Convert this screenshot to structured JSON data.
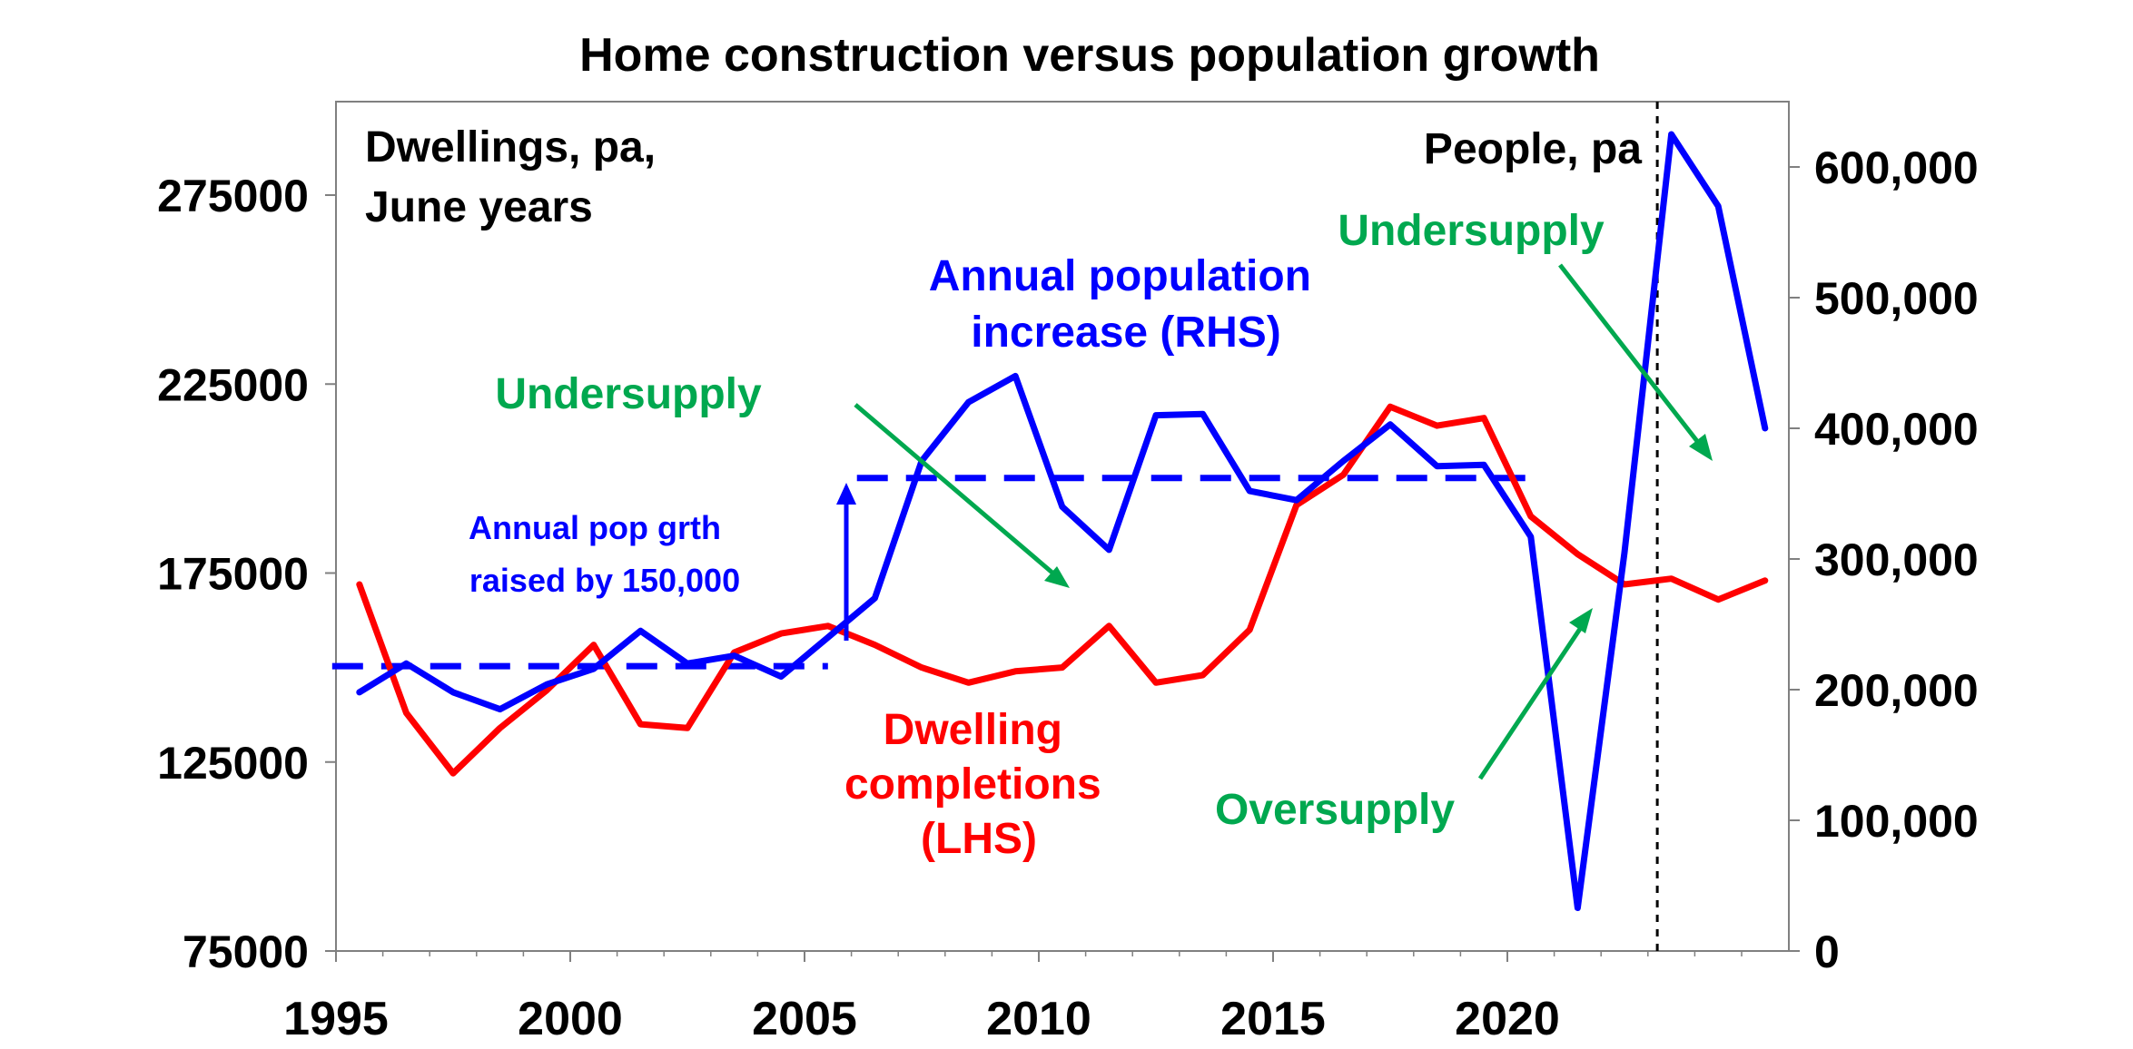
{
  "chart_data": {
    "type": "line",
    "title": "Home construction versus population growth",
    "left_axis_label": [
      "Dwellings, pa,",
      "June years"
    ],
    "right_axis_label": "People, pa",
    "xlim": [
      1995,
      2025
    ],
    "x_ticks": [
      1995,
      2000,
      2005,
      2010,
      2015,
      2020
    ],
    "ylim_left": [
      75000,
      300000
    ],
    "y_ticks_left": [
      "75000",
      "125000",
      "175000",
      "225000",
      "275000"
    ],
    "ylim_right": [
      0,
      650000
    ],
    "y_ticks_right": [
      "0",
      "100,000",
      "200,000",
      "300,000",
      "400,000",
      "500,000",
      "600,000"
    ],
    "series": [
      {
        "name": "Dwelling completions (LHS)",
        "axis": "left",
        "color": "#ff0000",
        "x": [
          1995.5,
          1996.5,
          1997.5,
          1998.5,
          1999.5,
          2000.5,
          2001.5,
          2002.5,
          2003.5,
          2004.5,
          2005.5,
          2006.5,
          2007.5,
          2008.5,
          2009.5,
          2010.5,
          2011.5,
          2012.5,
          2013.5,
          2014.5,
          2015.5,
          2016.5,
          2017.5,
          2018.5,
          2019.5,
          2020.5,
          2021.5,
          2022.5,
          2023.5,
          2024.5,
          2025.5
        ],
        "values": [
          172000,
          138000,
          122000,
          134000,
          144000,
          156000,
          135000,
          134000,
          154000,
          159000,
          161000,
          156000,
          150000,
          146000,
          149000,
          150000,
          161000,
          146000,
          148000,
          160000,
          193000,
          201000,
          219000,
          214000,
          216000,
          190000,
          180000,
          172000,
          173500,
          168000,
          173000
        ]
      },
      {
        "name": "Annual population increase (RHS)",
        "axis": "right",
        "color": "#0000ff",
        "x": [
          1995.5,
          1996.5,
          1997.5,
          1998.5,
          1999.5,
          2000.5,
          2001.5,
          2002.5,
          2003.5,
          2004.5,
          2005.5,
          2006.5,
          2007.5,
          2008.5,
          2009.5,
          2010.5,
          2011.5,
          2012.5,
          2013.5,
          2014.5,
          2015.5,
          2016.5,
          2017.5,
          2018.5,
          2019.5,
          2020.5,
          2021.5,
          2022.5,
          2023.5,
          2024.5,
          2025.5
        ],
        "values": [
          198000,
          220000,
          198000,
          185000,
          204000,
          216000,
          245000,
          220000,
          226000,
          210000,
          240000,
          270000,
          375000,
          420000,
          440000,
          340000,
          307000,
          410000,
          411000,
          352000,
          345000,
          375000,
          403000,
          371000,
          372000,
          317000,
          33000,
          305000,
          625000,
          570000,
          400000
        ]
      }
    ],
    "reference_lines": [
      {
        "style": "dashed",
        "color": "#0000ff",
        "axis": "right",
        "x_start": 1995.5,
        "x_end": 2005.5,
        "value": 218000
      },
      {
        "style": "dashed",
        "color": "#0000ff",
        "axis": "right",
        "x_start": 2006.7,
        "x_end": 2020.6,
        "value": 362000
      },
      {
        "style": "dotted",
        "color": "#000000",
        "orientation": "vertical",
        "x": 2023.2
      }
    ],
    "annotations": {
      "pop_series_label": [
        "Annual population",
        "increase (RHS)"
      ],
      "dwelling_series_label": [
        "Dwelling",
        "completions",
        "(LHS)"
      ],
      "pop_raise_note": [
        "Annual pop grth",
        "raised by 150,000"
      ],
      "undersupply_1": "Undersupply",
      "undersupply_2": "Undersupply",
      "oversupply": "Oversupply"
    },
    "colors": {
      "dwellings": "#ff0000",
      "population": "#0000ff",
      "annotation_green": "#00a84f"
    }
  }
}
